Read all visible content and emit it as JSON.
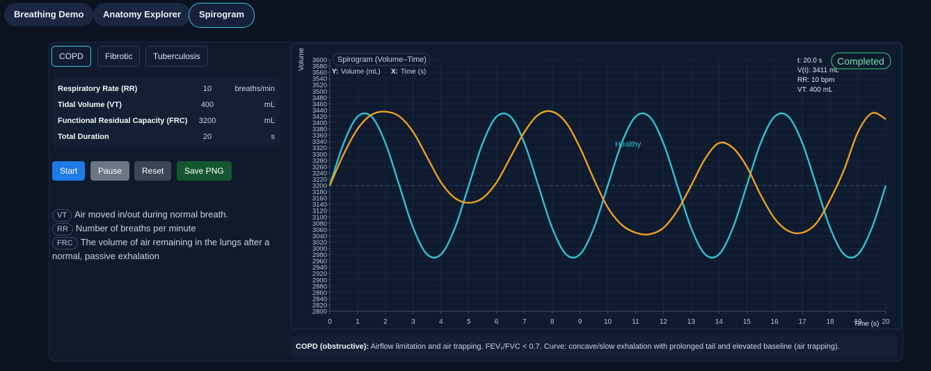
{
  "nav": {
    "tabs": [
      "Breathing Demo",
      "Anatomy Explorer",
      "Spirogram"
    ]
  },
  "conditions": [
    "COPD",
    "Fibrotic",
    "Tuberculosis"
  ],
  "params": [
    {
      "label": "Respiratory Rate (RR)",
      "value": 10,
      "unit": "breaths/min"
    },
    {
      "label": "Tidal Volume (VT)",
      "value": 400,
      "unit": "mL"
    },
    {
      "label": "Functional Residual Capacity (FRC)",
      "value": 3200,
      "unit": "mL"
    },
    {
      "label": "Total Duration",
      "value": 20,
      "unit": "s"
    }
  ],
  "buttons": [
    "Start",
    "Pause",
    "Reset",
    "Save PNG"
  ],
  "glossary": [
    {
      "abbr": "VT",
      "text": "Air moved in/out during normal breath."
    },
    {
      "abbr": "RR",
      "text": "Number of breaths per minute"
    },
    {
      "abbr": "FRC",
      "text": "The volume of air remaining in the lungs after a normal, passive exhalation"
    }
  ],
  "note": {
    "bold": "COPD (obstructive):",
    "text": "Airflow limitation and air trapping. FEV₁/FVC < 0.7. Curve: concave/slow exhalation with prolonged tail and elevated baseline (air trapping)."
  },
  "chart_data": {
    "type": "line",
    "title": "Spirogram (Volume–Time)",
    "y_hint_key": "Y:",
    "y_hint": "Volume (mL)",
    "x_hint_key": "X:",
    "x_hint": "Time (s)",
    "y_label": "Volume",
    "x_label": "Time (s)",
    "status": [
      "t: 20.0 s",
      "V(t): 3411 mL",
      "RR: 10 bpm",
      "VT: 400 mL"
    ],
    "badge": "Completed",
    "xlim": [
      0,
      20
    ],
    "ylim": [
      2800,
      3600
    ],
    "xticks": [
      0,
      1,
      2,
      3,
      4,
      5,
      6,
      7,
      8,
      9,
      10,
      11,
      12,
      13,
      14,
      15,
      16,
      17,
      18,
      19,
      20
    ],
    "yticks": [
      2800,
      2820,
      2840,
      2860,
      2880,
      2900,
      2920,
      2940,
      2960,
      2980,
      3000,
      3020,
      3040,
      3060,
      3080,
      3100,
      3120,
      3140,
      3160,
      3180,
      3200,
      3220,
      3240,
      3260,
      3280,
      3300,
      3320,
      3340,
      3360,
      3380,
      3400,
      3420,
      3440,
      3460,
      3480,
      3500,
      3520,
      3540,
      3560,
      3580,
      3600
    ],
    "grid": true,
    "x": [
      0,
      0.5,
      1,
      1.5,
      2,
      2.5,
      3,
      3.5,
      4,
      4.5,
      5,
      5.5,
      6,
      6.5,
      7,
      7.5,
      8,
      8.5,
      9,
      9.5,
      10,
      10.5,
      11,
      11.5,
      12,
      12.5,
      13,
      13.5,
      14,
      14.5,
      15,
      15.5,
      16,
      16.5,
      17,
      17.5,
      18,
      18.5,
      19,
      19.5,
      20
    ],
    "series": [
      {
        "name": "Healthy",
        "color": "#2fc4d4",
        "values": [
          3200,
          3335,
          3419,
          3419,
          3335,
          3200,
          3065,
          2981,
          2981,
          3065,
          3200,
          3335,
          3419,
          3419,
          3335,
          3200,
          3065,
          2981,
          2981,
          3065,
          3200,
          3335,
          3419,
          3419,
          3335,
          3200,
          3065,
          2981,
          2981,
          3065,
          3200,
          3335,
          3419,
          3419,
          3335,
          3200,
          3065,
          2981,
          2981,
          3065,
          3200
        ]
      },
      {
        "color": "#f0a020",
        "values": [
          3200,
          3300,
          3380,
          3425,
          3435,
          3420,
          3370,
          3290,
          3210,
          3160,
          3145,
          3160,
          3210,
          3290,
          3370,
          3425,
          3435,
          3400,
          3320,
          3220,
          3130,
          3075,
          3050,
          3045,
          3065,
          3120,
          3200,
          3285,
          3335,
          3320,
          3260,
          3170,
          3095,
          3055,
          3050,
          3080,
          3155,
          3250,
          3370,
          3430,
          3411
        ]
      }
    ]
  }
}
